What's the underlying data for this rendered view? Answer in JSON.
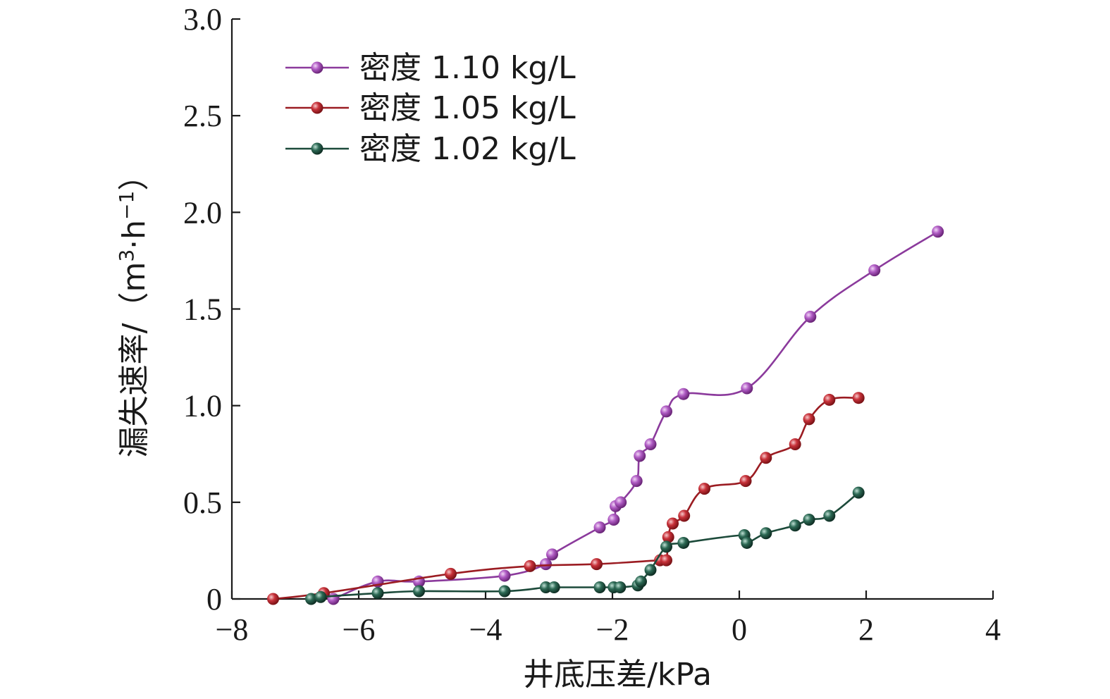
{
  "chart_data": {
    "type": "line",
    "xlabel": "井底压差/kPa",
    "ylabel_main": "漏失速率/（m",
    "ylabel_sup1": "3",
    "ylabel_mid": "·h",
    "ylabel_sup2": "−1",
    "ylabel_end": "）",
    "xlim": [
      -8,
      4
    ],
    "ylim": [
      0,
      3.0
    ],
    "x_ticks": [
      -8,
      -6,
      -4,
      -2,
      0,
      2,
      4
    ],
    "x_tick_labels": [
      "−8",
      "−6",
      "−4",
      "−2",
      "0",
      "2",
      "4"
    ],
    "y_ticks": [
      0,
      0.5,
      1.0,
      1.5,
      2.0,
      2.5,
      3.0
    ],
    "y_tick_labels": [
      "0",
      "0.5",
      "1.0",
      "1.5",
      "2.0",
      "2.5",
      "3.0"
    ],
    "legend_position": "top-left",
    "series": [
      {
        "name": "密度 1.10 kg/L",
        "color": "#8b3a9c",
        "marker_color": "#b05cc4",
        "x": [
          -6.4,
          -5.7,
          -5.05,
          -3.7,
          -3.05,
          -2.95,
          -2.2,
          -1.98,
          -1.95,
          -1.87,
          -1.62,
          -1.57,
          -1.4,
          -1.15,
          -0.88,
          0.12,
          1.12,
          2.13,
          3.13
        ],
        "y": [
          0.0,
          0.09,
          0.09,
          0.12,
          0.18,
          0.23,
          0.37,
          0.41,
          0.48,
          0.5,
          0.61,
          0.74,
          0.8,
          0.97,
          1.06,
          1.09,
          1.46,
          1.7,
          1.9
        ]
      },
      {
        "name": "密度 1.05 kg/L",
        "color": "#9b1c22",
        "marker_color": "#c8323a",
        "x": [
          -7.35,
          -6.55,
          -4.55,
          -3.3,
          -2.25,
          -1.25,
          -1.15,
          -1.12,
          -1.05,
          -0.87,
          -0.55,
          0.1,
          0.42,
          0.88,
          1.1,
          1.42,
          1.88
        ],
        "y": [
          0.0,
          0.03,
          0.13,
          0.17,
          0.18,
          0.2,
          0.2,
          0.32,
          0.39,
          0.43,
          0.57,
          0.61,
          0.73,
          0.8,
          0.93,
          1.03,
          1.04
        ]
      },
      {
        "name": "密度 1.02 kg/L",
        "color": "#1c4a3a",
        "marker_color": "#2d6a55",
        "x": [
          -6.75,
          -6.6,
          -5.7,
          -5.05,
          -3.7,
          -3.05,
          -2.92,
          -2.2,
          -1.98,
          -1.88,
          -1.6,
          -1.55,
          -1.4,
          -1.15,
          -0.88,
          0.08,
          0.12,
          0.42,
          0.88,
          1.1,
          1.42,
          1.88
        ],
        "y": [
          0.0,
          0.01,
          0.03,
          0.04,
          0.04,
          0.06,
          0.06,
          0.06,
          0.06,
          0.06,
          0.07,
          0.09,
          0.15,
          0.27,
          0.29,
          0.33,
          0.29,
          0.34,
          0.38,
          0.41,
          0.43,
          0.55
        ]
      }
    ]
  }
}
